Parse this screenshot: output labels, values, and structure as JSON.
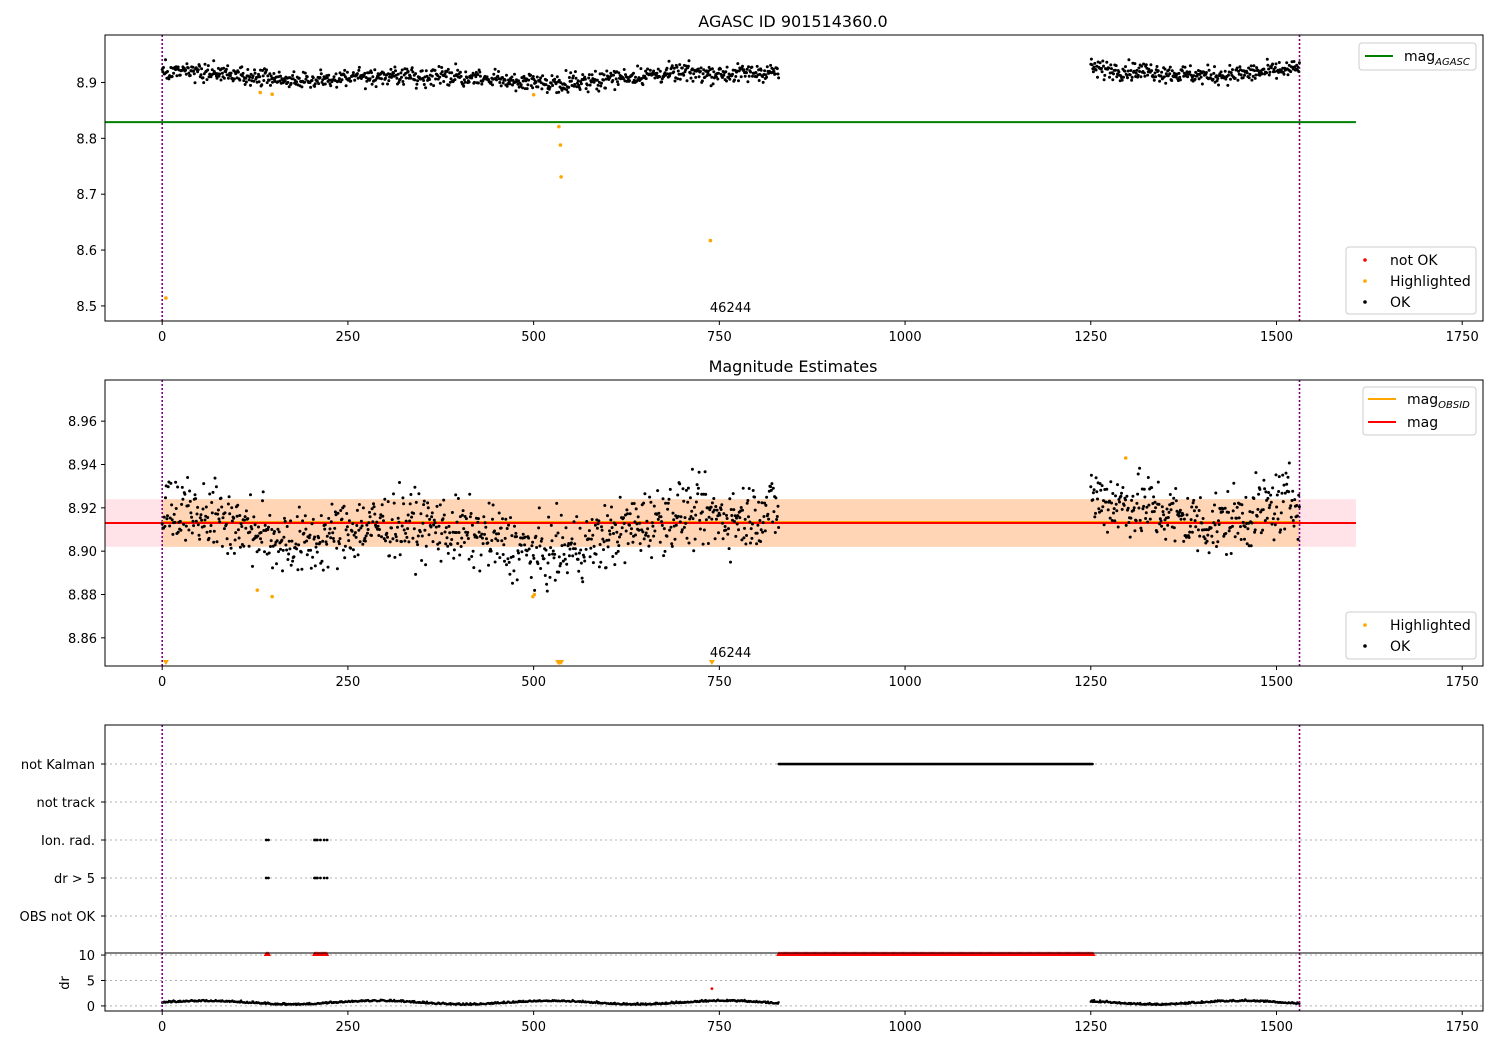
{
  "chart_data": [
    {
      "type": "scatter",
      "title": "AGASC ID 901514360.0",
      "xlim": [
        -77,
        1778
      ],
      "ylim": [
        8.473,
        8.985
      ],
      "xticks": [
        0,
        250,
        500,
        750,
        1000,
        1250,
        1500,
        1750
      ],
      "yticks": [
        8.5,
        8.6,
        8.7,
        8.8,
        8.9
      ],
      "ytick_labels": [
        "8.5",
        "8.6",
        "8.7",
        "8.8",
        "8.9"
      ],
      "vlines": [
        0,
        1531
      ],
      "annotation": {
        "text": "46244",
        "x": 740
      },
      "mag_agasc": 8.829,
      "mag_agasc_x": [
        -77,
        1607
      ],
      "ok_segments": [
        {
          "x0": 0,
          "x1": 830,
          "level": [
            8.918,
            8.918,
            8.908,
            8.903,
            8.91,
            8.913,
            8.91,
            8.905,
            8.898,
            8.903,
            8.912,
            8.918,
            8.915,
            8.92
          ]
        },
        {
          "x0": 1250,
          "x1": 1531,
          "level": [
            8.925,
            8.922,
            8.92,
            8.915,
            8.912,
            8.915,
            8.92,
            8.925
          ]
        }
      ],
      "highlighted": [
        [
          5,
          8.514
        ],
        [
          132,
          8.882
        ],
        [
          148,
          8.879
        ],
        [
          500,
          8.878
        ],
        [
          534,
          8.821
        ],
        [
          536,
          8.788
        ],
        [
          537,
          8.731
        ],
        [
          738,
          8.617
        ]
      ],
      "not_ok": [],
      "legends": [
        {
          "position": "upper right",
          "entries": [
            {
              "label_main": "mag",
              "label_sub": "AGASC",
              "kind": "line",
              "color": "#008000"
            }
          ]
        },
        {
          "position": "lower right",
          "entries": [
            {
              "label": "not OK",
              "kind": "dot",
              "color": "#ff0000"
            },
            {
              "label": "Highlighted",
              "kind": "dot",
              "color": "#ffa500"
            },
            {
              "label": "OK",
              "kind": "dot",
              "color": "#000000"
            }
          ]
        }
      ]
    },
    {
      "type": "scatter",
      "title": "Magnitude Estimates",
      "xlim": [
        -77,
        1778
      ],
      "ylim": [
        8.847,
        8.979
      ],
      "xticks": [
        0,
        250,
        500,
        750,
        1000,
        1250,
        1500,
        1750
      ],
      "yticks": [
        8.86,
        8.88,
        8.9,
        8.92,
        8.94,
        8.96
      ],
      "ytick_labels": [
        "8.86",
        "8.88",
        "8.90",
        "8.92",
        "8.94",
        "8.96"
      ],
      "vlines": [
        0,
        1531
      ],
      "annotation": {
        "text": "46244",
        "x": 740
      },
      "mag": 8.913,
      "mag_obsid": 8.913,
      "mag_band": [
        8.902,
        8.924
      ],
      "band_x": [
        -77,
        1607
      ],
      "obsid_band_x": [
        0,
        1531
      ],
      "ok_segments": [
        {
          "x0": 0,
          "x1": 830,
          "level": [
            8.918,
            8.918,
            8.908,
            8.903,
            8.91,
            8.913,
            8.91,
            8.905,
            8.898,
            8.903,
            8.912,
            8.918,
            8.915,
            8.92
          ]
        },
        {
          "x0": 1250,
          "x1": 1531,
          "level": [
            8.925,
            8.922,
            8.92,
            8.915,
            8.912,
            8.915,
            8.92,
            8.925
          ]
        }
      ],
      "highlighted": [
        [
          128,
          8.882
        ],
        [
          148,
          8.879
        ],
        [
          499,
          8.879
        ],
        [
          501,
          8.88
        ],
        [
          1297,
          8.943
        ]
      ],
      "below_markers": [
        5,
        533,
        535,
        537,
        740
      ],
      "legends": [
        {
          "position": "upper right",
          "entries": [
            {
              "label_main": "mag",
              "label_sub": "OBSID",
              "kind": "line",
              "color": "#ffa500"
            },
            {
              "label": "mag",
              "kind": "line",
              "color": "#ff0000"
            }
          ]
        },
        {
          "position": "lower right",
          "entries": [
            {
              "label": "Highlighted",
              "kind": "dot",
              "color": "#ffa500"
            },
            {
              "label": "OK",
              "kind": "dot",
              "color": "#000000"
            }
          ]
        }
      ]
    },
    {
      "type": "scatter",
      "title": "",
      "xlim": [
        -77,
        1778
      ],
      "xticks": [
        0,
        250,
        500,
        750,
        1000,
        1250,
        1500,
        1750
      ],
      "vlines": [
        0,
        1531
      ],
      "flag_rows": [
        "not Kalman",
        "not track",
        "Ion. rad.",
        "dr > 5",
        "OBS not OK"
      ],
      "flag_ranges": [
        {
          "row": "not Kalman",
          "x0": 830,
          "x1": 1253
        },
        {
          "row": "Ion. rad.",
          "x": [
            140,
            143,
            205,
            207,
            209,
            213,
            218,
            222
          ]
        },
        {
          "row": "dr > 5",
          "x": [
            140,
            143,
            205,
            207,
            209,
            213,
            218,
            222
          ]
        }
      ],
      "dr_ylabel": "dr",
      "dr_yticks": [
        0,
        5,
        10
      ],
      "dr_ylim": [
        -1,
        10.4
      ],
      "dr_clipped_x": [
        [
          140,
          143
        ],
        [
          205,
          222
        ],
        [
          830,
          1253
        ]
      ],
      "dr_outlier": [
        [
          740,
          3.4
        ]
      ],
      "dr_segments": [
        [
          0,
          830
        ],
        [
          1250,
          1531
        ]
      ]
    }
  ]
}
